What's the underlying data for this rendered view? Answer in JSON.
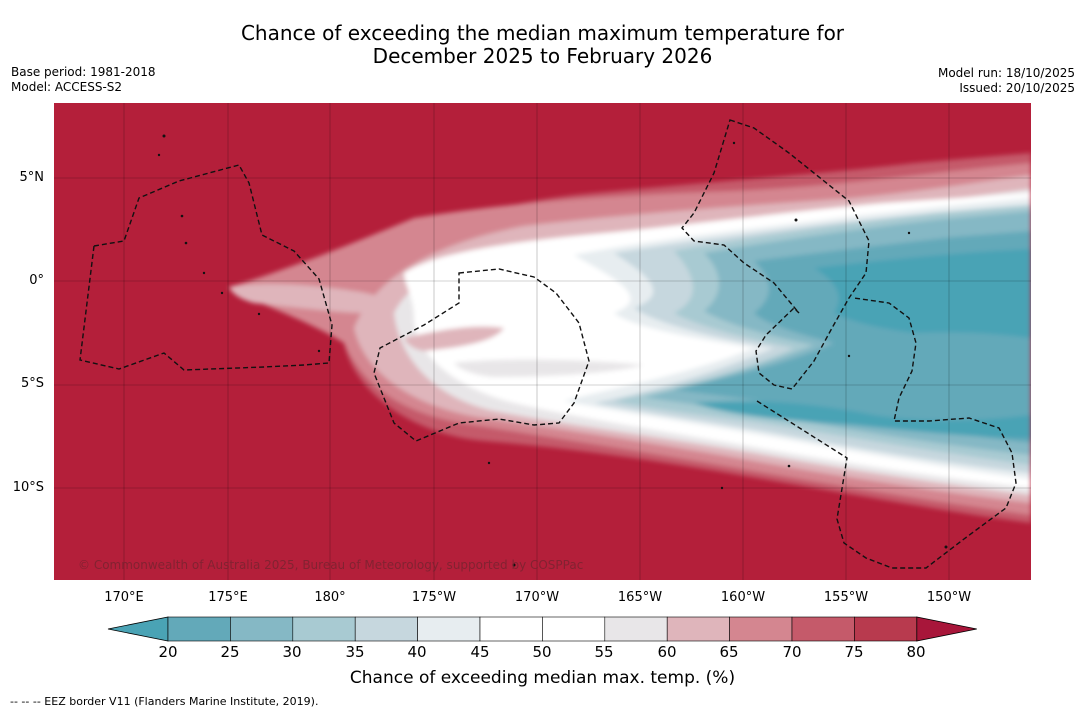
{
  "title": {
    "line1": "Chance of exceeding the median maximum temperature for",
    "line2": "December 2025 to February 2026"
  },
  "meta": {
    "base_period": "Base period: 1981-2018",
    "model": "Model: ACCESS-S2",
    "model_run": "Model run: 18/10/2025",
    "issued": "Issued: 20/10/2025"
  },
  "axes": {
    "lat_labels": [
      "5°N",
      "0°",
      "5°S",
      "10°S"
    ],
    "lon_labels": [
      "170°E",
      "175°E",
      "180°",
      "175°W",
      "170°W",
      "165°W",
      "160°W",
      "155°W",
      "150°W"
    ]
  },
  "copyright": "© Commonwealth of Australia 2025, Bureau of Meteorology, supported by COSPPac",
  "colorbar": {
    "title": "Chance of exceeding median max. temp. (%)",
    "ticks": [
      "20",
      "25",
      "30",
      "35",
      "40",
      "45",
      "50",
      "55",
      "60",
      "65",
      "70",
      "75",
      "80"
    ],
    "under_color": "#4aa3b5",
    "over_color": "#a8163a",
    "colors": [
      "#63a9b9",
      "#85b8c5",
      "#a8cad2",
      "#c6d7de",
      "#e7edf0",
      "#ffffff",
      "#ffffff",
      "#e8e6e8",
      "#dfb5bb",
      "#d48690",
      "#c55a6a",
      "#b83a4e"
    ]
  },
  "map_colors": {
    "background": "#b41f3a",
    "border": "#111111"
  },
  "footnote": "--  --  -- EEZ border V11 (Flanders Marine Institute, 2019)."
}
